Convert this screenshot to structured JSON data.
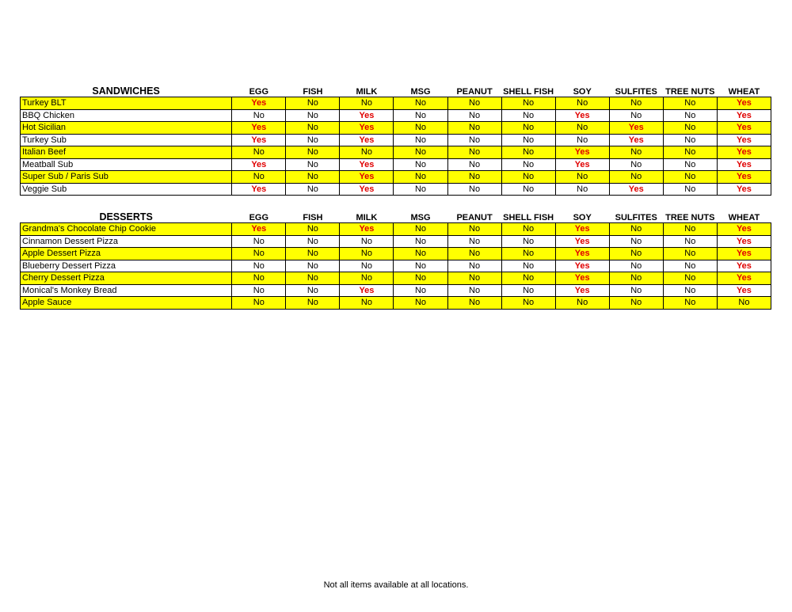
{
  "columns": [
    "EGG",
    "FISH",
    "MILK",
    "MSG",
    "PEANUT",
    "SHELL FISH",
    "SOY",
    "SULFITES",
    "TREE NUTS",
    "WHEAT"
  ],
  "colors": {
    "highlight": "#ffff00",
    "yes": "#e00000"
  },
  "sections": [
    {
      "title": "SANDWICHES",
      "rows": [
        {
          "name": "Turkey BLT",
          "highlight": true,
          "values": [
            "Yes",
            "No",
            "No",
            "No",
            "No",
            "No",
            "No",
            "No",
            "No",
            "Yes"
          ]
        },
        {
          "name": "BBQ Chicken",
          "highlight": false,
          "values": [
            "No",
            "No",
            "Yes",
            "No",
            "No",
            "No",
            "Yes",
            "No",
            "No",
            "Yes"
          ]
        },
        {
          "name": "Hot Sicilian",
          "highlight": true,
          "values": [
            "Yes",
            "No",
            "Yes",
            "No",
            "No",
            "No",
            "No",
            "Yes",
            "No",
            "Yes"
          ]
        },
        {
          "name": "Turkey Sub",
          "highlight": false,
          "values": [
            "Yes",
            "No",
            "Yes",
            "No",
            "No",
            "No",
            "No",
            "Yes",
            "No",
            "Yes"
          ]
        },
        {
          "name": "Italian Beef",
          "highlight": true,
          "values": [
            "No",
            "No",
            "No",
            "No",
            "No",
            "No",
            "Yes",
            "No",
            "No",
            "Yes"
          ]
        },
        {
          "name": "Meatball Sub",
          "highlight": false,
          "values": [
            "Yes",
            "No",
            "Yes",
            "No",
            "No",
            "No",
            "Yes",
            "No",
            "No",
            "Yes"
          ]
        },
        {
          "name": "Super Sub / Paris Sub",
          "highlight": true,
          "values": [
            "No",
            "No",
            "Yes",
            "No",
            "No",
            "No",
            "No",
            "No",
            "No",
            "Yes"
          ]
        },
        {
          "name": "Veggie Sub",
          "highlight": false,
          "values": [
            "Yes",
            "No",
            "Yes",
            "No",
            "No",
            "No",
            "No",
            "Yes",
            "No",
            "Yes"
          ]
        }
      ]
    },
    {
      "title": "DESSERTS",
      "rows": [
        {
          "name": "Grandma's Chocolate Chip Cookie",
          "highlight": true,
          "values": [
            "Yes",
            "No",
            "Yes",
            "No",
            "No",
            "No",
            "Yes",
            "No",
            "No",
            "Yes"
          ]
        },
        {
          "name": "Cinnamon Dessert Pizza",
          "highlight": false,
          "values": [
            "No",
            "No",
            "No",
            "No",
            "No",
            "No",
            "Yes",
            "No",
            "No",
            "Yes"
          ]
        },
        {
          "name": "Apple Dessert Pizza",
          "highlight": true,
          "values": [
            "No",
            "No",
            "No",
            "No",
            "No",
            "No",
            "Yes",
            "No",
            "No",
            "Yes"
          ]
        },
        {
          "name": "Blueberry Dessert Pizza",
          "highlight": false,
          "values": [
            "No",
            "No",
            "No",
            "No",
            "No",
            "No",
            "Yes",
            "No",
            "No",
            "Yes"
          ]
        },
        {
          "name": "Cherry Dessert Pizza",
          "highlight": true,
          "values": [
            "No",
            "No",
            "No",
            "No",
            "No",
            "No",
            "Yes",
            "No",
            "No",
            "Yes"
          ]
        },
        {
          "name": "Monical's Monkey Bread",
          "highlight": false,
          "values": [
            "No",
            "No",
            "Yes",
            "No",
            "No",
            "No",
            "Yes",
            "No",
            "No",
            "Yes"
          ]
        },
        {
          "name": "Apple Sauce",
          "highlight": true,
          "values": [
            "No",
            "No",
            "No",
            "No",
            "No",
            "No",
            "No",
            "No",
            "No",
            "No"
          ]
        }
      ]
    }
  ],
  "footer": "Not all items available at all locations."
}
